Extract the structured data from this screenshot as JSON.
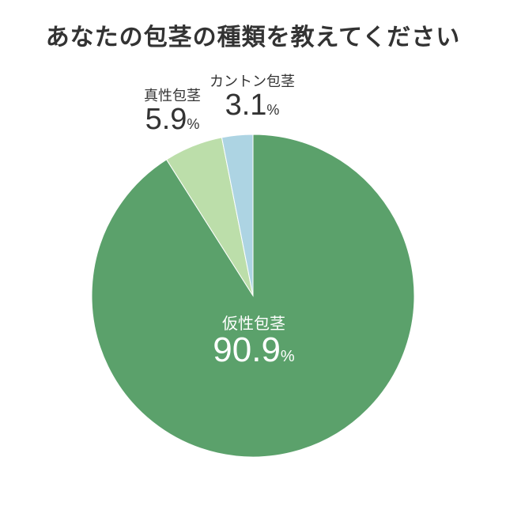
{
  "title": "あなたの包茎の種類を教えてください",
  "colors": {
    "kasei": "#5ba16b",
    "shinsei": "#bcdeaa",
    "kanton": "#add4e3"
  },
  "chart_data": {
    "type": "pie",
    "title": "あなたの包茎の種類を教えてください",
    "unit": "%",
    "start": "top",
    "direction": "clockwise",
    "slices": [
      {
        "label": "仮性包茎",
        "value": 90.9,
        "value_text": "90.9",
        "color": "#5ba16b"
      },
      {
        "label": "真性包茎",
        "value": 5.9,
        "value_text": "5.9",
        "color": "#bcdeaa"
      },
      {
        "label": "カントン包茎",
        "value": 3.1,
        "value_text": "3.1",
        "color": "#add4e3"
      }
    ]
  }
}
